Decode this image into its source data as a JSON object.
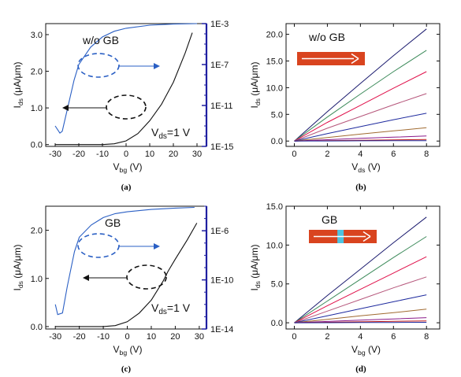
{
  "panels": [
    {
      "id": "a",
      "caption": "(a)",
      "kind": "transfer",
      "label": "w/o GB",
      "vds_label": "V",
      "vds_sub": "ds",
      "vds_value": "=1 V",
      "ylabel": "I",
      "ylabel_sub": "ds",
      "ylabel_unit": " (μA/μm)",
      "xlabel": "V",
      "xlabel_sub": "bg",
      "xlabel_unit": " (V)",
      "x_ticks": [
        "-30",
        "-20",
        "-10",
        "0",
        "10",
        "20",
        "30"
      ],
      "y_ticks": [
        "0.0",
        "1.0",
        "2.0",
        "3.0"
      ],
      "y_right_ticks": [
        "1E-15",
        "1E-11",
        "1E-7",
        "1E-3"
      ],
      "xlim": [
        -34,
        34
      ],
      "ylim": [
        -0.05,
        3.3
      ],
      "y_right_log": [
        -15,
        -3
      ],
      "colors": {
        "linear": "#111111",
        "log": "#2a5fc4",
        "axis_right": "#1f1fa0",
        "arrow_blue": "#2a5fc4"
      }
    },
    {
      "id": "b",
      "caption": "(b)",
      "kind": "output",
      "label": "w/o GB",
      "ylabel": "I",
      "ylabel_sub": "ds",
      "ylabel_unit": " (μA/μm)",
      "xlabel": "V",
      "xlabel_sub": "ds",
      "xlabel_unit": " (V)",
      "x_ticks": [
        "0",
        "2",
        "4",
        "6",
        "8"
      ],
      "y_ticks": [
        "0.0",
        "5.0",
        "10.0",
        "15.0",
        "20.0"
      ],
      "xlim": [
        -0.5,
        8.8
      ],
      "ylim": [
        -1,
        22
      ],
      "gb_marker": false,
      "colors": {
        "bar": "#d9441f",
        "arrow": "#ffffff",
        "gb": "#4dc3e0"
      }
    },
    {
      "id": "c",
      "caption": "(c)",
      "kind": "transfer",
      "label": "GB",
      "vds_label": "V",
      "vds_sub": "ds",
      "vds_value": "=1 V",
      "ylabel": "I",
      "ylabel_sub": "ds",
      "ylabel_unit": " (μA/μm)",
      "xlabel": "V",
      "xlabel_sub": "bg",
      "xlabel_unit": " (V)",
      "x_ticks": [
        "-30",
        "-20",
        "-10",
        "0",
        "10",
        "20",
        "30"
      ],
      "y_ticks": [
        "0.0",
        "1.0",
        "2.0"
      ],
      "y_right_ticks": [
        "1E-14",
        "1E-10",
        "1E-6"
      ],
      "xlim": [
        -34,
        33
      ],
      "ylim": [
        -0.05,
        2.5
      ],
      "y_right_log": [
        -14,
        -4
      ],
      "colors": {
        "linear": "#111111",
        "log": "#2a5fc4",
        "axis_right": "#1f1fa0",
        "arrow_blue": "#2a5fc4"
      }
    },
    {
      "id": "d",
      "caption": "(d)",
      "kind": "output",
      "label": "GB",
      "ylabel": "I",
      "ylabel_sub": "ds",
      "ylabel_unit": " (μA/μm)",
      "xlabel": "V",
      "xlabel_sub": "bg",
      "xlabel_unit": " (V)",
      "x_ticks": [
        "0",
        "2",
        "4",
        "6",
        "8"
      ],
      "y_ticks": [
        "0.0",
        "5.0",
        "10.0",
        "15.0"
      ],
      "xlim": [
        -0.5,
        8.8
      ],
      "ylim": [
        -0.8,
        15
      ],
      "gb_marker": true,
      "colors": {
        "bar": "#d9441f",
        "arrow": "#ffffff",
        "gb": "#4dc3e0"
      }
    }
  ],
  "chart_data": [
    {
      "type": "line",
      "title": "w/o GB",
      "xlabel": "Vbg (V)",
      "ylabel": "Ids (μA/μm)",
      "xlim": [
        -34,
        34
      ],
      "ylim": [
        0,
        3.3
      ],
      "y2_scale": "log",
      "y2_ticks": [
        "1E-15",
        "1E-11",
        "1E-7",
        "1E-3"
      ],
      "annotation": "Vds=1 V",
      "series": [
        {
          "axis": "left",
          "color": "#111111",
          "x": [
            -30,
            -20,
            -10,
            -5,
            0,
            5,
            10,
            15,
            20,
            25,
            28
          ],
          "y": [
            0.0,
            0.0,
            0.0,
            0.02,
            0.1,
            0.3,
            0.65,
            1.1,
            1.7,
            2.5,
            3.05
          ]
        },
        {
          "axis": "right",
          "color": "#2a5fc4",
          "x": [
            -30,
            -28,
            -27,
            -25,
            -22,
            -20,
            -15,
            -10,
            -5,
            0,
            10,
            20,
            30
          ],
          "y": [
            1e-13,
            2e-14,
            3e-14,
            3e-12,
            3e-09,
            1e-07,
            5e-06,
            5e-05,
            0.00018,
            0.00035,
            0.0007,
            0.0009,
            0.001
          ]
        }
      ]
    },
    {
      "type": "line",
      "title": "w/o GB",
      "xlabel": "Vds (V)",
      "ylabel": "Ids (μA/μm)",
      "xlim": [
        0,
        8
      ],
      "ylim": [
        0,
        22
      ],
      "series": [
        {
          "color": "#1a1a6e",
          "x": [
            0,
            2,
            4,
            6,
            8
          ],
          "y": [
            0,
            5.5,
            10.8,
            16.0,
            21.0
          ]
        },
        {
          "color": "#3c8a5a",
          "x": [
            0,
            2,
            4,
            6,
            8
          ],
          "y": [
            0,
            4.5,
            8.8,
            13.0,
            17.0
          ]
        },
        {
          "color": "#e0104a",
          "x": [
            0,
            2,
            4,
            6,
            8
          ],
          "y": [
            0,
            3.5,
            6.7,
            9.9,
            13.0
          ]
        },
        {
          "color": "#b5557a",
          "x": [
            0,
            2,
            4,
            6,
            8
          ],
          "y": [
            0,
            2.4,
            4.6,
            6.8,
            8.9
          ]
        },
        {
          "color": "#1e2a9e",
          "x": [
            0,
            2,
            4,
            6,
            8
          ],
          "y": [
            0,
            1.4,
            2.7,
            4.0,
            5.2
          ]
        },
        {
          "color": "#a06a30",
          "x": [
            0,
            2,
            4,
            6,
            8
          ],
          "y": [
            0,
            0.65,
            1.3,
            1.9,
            2.5
          ]
        },
        {
          "color": "#8a1a8a",
          "x": [
            0,
            2,
            4,
            6,
            8
          ],
          "y": [
            0,
            0.25,
            0.5,
            0.72,
            0.95
          ]
        },
        {
          "color": "#c01818",
          "x": [
            0,
            2,
            4,
            6,
            8
          ],
          "y": [
            0,
            0.08,
            0.15,
            0.22,
            0.3
          ]
        },
        {
          "color": "#1a2aa0",
          "x": [
            0,
            2,
            4,
            6,
            8
          ],
          "y": [
            0,
            0.02,
            0.04,
            0.06,
            0.08
          ]
        }
      ]
    },
    {
      "type": "line",
      "title": "GB",
      "xlabel": "Vbg (V)",
      "ylabel": "Ids (μA/μm)",
      "xlim": [
        -34,
        33
      ],
      "ylim": [
        0,
        2.5
      ],
      "y2_scale": "log",
      "y2_ticks": [
        "1E-14",
        "1E-10",
        "1E-6"
      ],
      "annotation": "Vds=1 V",
      "series": [
        {
          "axis": "left",
          "color": "#111111",
          "x": [
            -30,
            -20,
            -10,
            -5,
            0,
            5,
            10,
            15,
            17,
            20,
            25,
            29
          ],
          "y": [
            0.0,
            0.0,
            0.0,
            0.02,
            0.1,
            0.28,
            0.55,
            0.95,
            1.15,
            1.4,
            1.8,
            2.15
          ]
        },
        {
          "axis": "right",
          "color": "#2a5fc4",
          "x": [
            -30,
            -29,
            -27,
            -25,
            -22,
            -20,
            -15,
            -10,
            -5,
            0,
            10,
            20,
            28
          ],
          "y": [
            1e-12,
            1.5e-13,
            2e-13,
            3e-11,
            2e-08,
            3e-07,
            3e-06,
            1.2e-05,
            2.5e-05,
            3.5e-05,
            5.5e-05,
            7e-05,
            8e-05
          ]
        }
      ]
    },
    {
      "type": "line",
      "title": "GB",
      "xlabel": "Vbg (V)",
      "ylabel": "Ids (μA/μm)",
      "xlim": [
        0,
        8
      ],
      "ylim": [
        0,
        15
      ],
      "series": [
        {
          "color": "#1a1a6e",
          "x": [
            0,
            2,
            4,
            6,
            8
          ],
          "y": [
            0,
            3.5,
            6.9,
            10.3,
            13.6
          ]
        },
        {
          "color": "#3c8a5a",
          "x": [
            0,
            2,
            4,
            6,
            8
          ],
          "y": [
            0,
            2.8,
            5.6,
            8.4,
            11.1
          ]
        },
        {
          "color": "#e0104a",
          "x": [
            0,
            2,
            4,
            6,
            8
          ],
          "y": [
            0,
            2.2,
            4.3,
            6.4,
            8.5
          ]
        },
        {
          "color": "#b5557a",
          "x": [
            0,
            2,
            4,
            6,
            8
          ],
          "y": [
            0,
            1.5,
            3.0,
            4.5,
            5.9
          ]
        },
        {
          "color": "#1e2a9e",
          "x": [
            0,
            2,
            4,
            6,
            8
          ],
          "y": [
            0,
            0.9,
            1.8,
            2.7,
            3.6
          ]
        },
        {
          "color": "#a06a30",
          "x": [
            0,
            2,
            4,
            6,
            8
          ],
          "y": [
            0,
            0.45,
            0.9,
            1.3,
            1.75
          ]
        },
        {
          "color": "#8a1a8a",
          "x": [
            0,
            2,
            4,
            6,
            8
          ],
          "y": [
            0,
            0.17,
            0.33,
            0.5,
            0.66
          ]
        },
        {
          "color": "#c01818",
          "x": [
            0,
            2,
            4,
            6,
            8
          ],
          "y": [
            0,
            0.06,
            0.12,
            0.18,
            0.24
          ]
        },
        {
          "color": "#1a2aa0",
          "x": [
            0,
            2,
            4,
            6,
            8
          ],
          "y": [
            0,
            0.015,
            0.03,
            0.045,
            0.06
          ]
        }
      ]
    }
  ]
}
